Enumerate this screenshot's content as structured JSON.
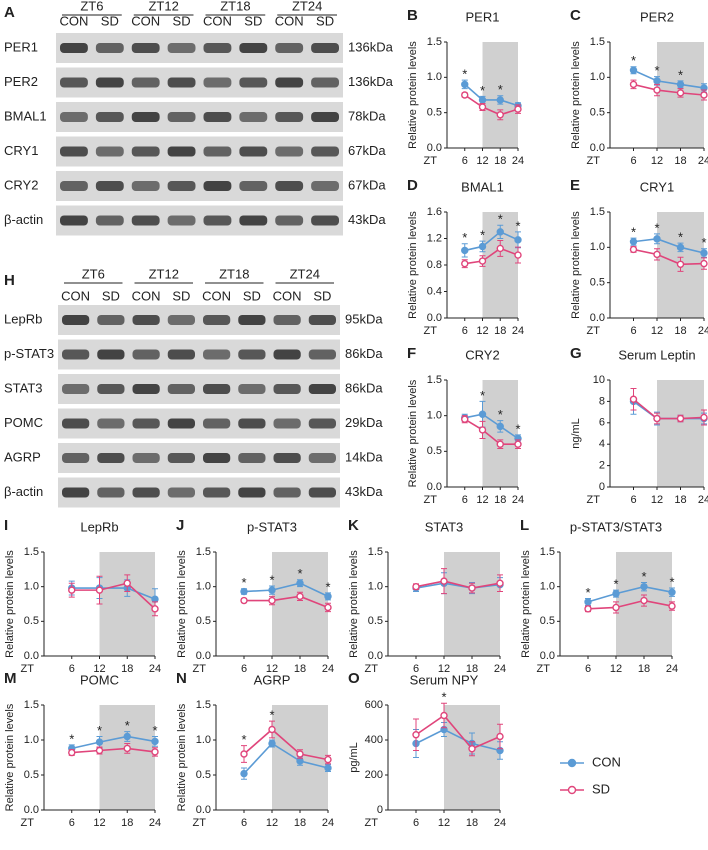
{
  "blots": [
    {
      "letter": "A",
      "groups": [
        "ZT6",
        "ZT12",
        "ZT18",
        "ZT24"
      ],
      "conditions": [
        "CON",
        "SD",
        "CON",
        "SD",
        "CON",
        "SD",
        "CON",
        "SD"
      ],
      "rows": [
        {
          "protein": "PER1",
          "size": "136kDa"
        },
        {
          "protein": "PER2",
          "size": "136kDa"
        },
        {
          "protein": "BMAL1",
          "size": "78kDa"
        },
        {
          "protein": "CRY1",
          "size": "67kDa"
        },
        {
          "protein": "CRY2",
          "size": "67kDa"
        },
        {
          "protein": "β-actin",
          "size": "43kDa"
        }
      ]
    },
    {
      "letter": "H",
      "groups": [
        "ZT6",
        "ZT12",
        "ZT18",
        "ZT24"
      ],
      "conditions": [
        "CON",
        "SD",
        "CON",
        "SD",
        "CON",
        "SD",
        "CON",
        "SD"
      ],
      "rows": [
        {
          "protein": "LepRb",
          "size": "95kDa"
        },
        {
          "protein": "p-STAT3",
          "size": "86kDa"
        },
        {
          "protein": "STAT3",
          "size": "86kDa"
        },
        {
          "protein": "POMC",
          "size": "29kDa"
        },
        {
          "protein": "AGRP",
          "size": "14kDa"
        },
        {
          "protein": "β-actin",
          "size": "43kDa"
        }
      ]
    }
  ],
  "chart_data": [
    {
      "type": "line",
      "letter": "B",
      "title": "PER1",
      "ylabel": "Relative protein levels",
      "xlabel": "ZT",
      "x": [
        6,
        12,
        18,
        24
      ],
      "xlim": [
        0,
        24
      ],
      "xticks": [
        6,
        12,
        18,
        24
      ],
      "ylim": [
        0,
        1.5
      ],
      "yticks": [
        {
          "value": 0,
          "label": "0.0"
        },
        0.5,
        {
          "value": 1,
          "label": "1.0"
        },
        1.5
      ],
      "shade": [
        12,
        24
      ],
      "series": [
        {
          "name": "CON",
          "color": "#5b9bd5",
          "values": [
            0.9,
            0.68,
            0.68,
            0.6
          ],
          "errors": [
            0.06,
            0.05,
            0.06,
            0.04
          ]
        },
        {
          "name": "SD",
          "color": "#e0457b",
          "values": [
            0.75,
            0.58,
            0.47,
            0.55
          ],
          "errors": [
            0.03,
            0.05,
            0.07,
            0.06
          ]
        }
      ],
      "annotations": [
        {
          "x": 6,
          "text": "*"
        },
        {
          "x": 12,
          "text": "*"
        },
        {
          "x": 18,
          "text": "*"
        }
      ]
    },
    {
      "type": "line",
      "letter": "C",
      "title": "PER2",
      "ylabel": "Relative protein levels",
      "xlabel": "ZT",
      "x": [
        6,
        12,
        18,
        24
      ],
      "xlim": [
        0,
        24
      ],
      "xticks": [
        6,
        12,
        18,
        24
      ],
      "ylim": [
        0,
        1.5
      ],
      "yticks": [
        {
          "value": 0,
          "label": "0.0"
        },
        0.5,
        {
          "value": 1,
          "label": "1.0"
        },
        1.5
      ],
      "shade": [
        12,
        24
      ],
      "series": [
        {
          "name": "CON",
          "color": "#5b9bd5",
          "values": [
            1.1,
            0.95,
            0.9,
            0.85
          ],
          "errors": [
            0.05,
            0.06,
            0.05,
            0.06
          ]
        },
        {
          "name": "SD",
          "color": "#e0457b",
          "values": [
            0.9,
            0.82,
            0.78,
            0.75
          ],
          "errors": [
            0.06,
            0.08,
            0.06,
            0.07
          ]
        }
      ],
      "annotations": [
        {
          "x": 6,
          "text": "*"
        },
        {
          "x": 12,
          "text": "*"
        },
        {
          "x": 18,
          "text": "*"
        }
      ]
    },
    {
      "type": "line",
      "letter": "D",
      "title": "BMAL1",
      "ylabel": "Relative protein levels",
      "xlabel": "ZT",
      "x": [
        6,
        12,
        18,
        24
      ],
      "xlim": [
        0,
        24
      ],
      "xticks": [
        6,
        12,
        18,
        24
      ],
      "ylim": [
        0,
        1.6
      ],
      "yticks": [
        {
          "value": 0,
          "label": "0.0"
        },
        0.4,
        0.8,
        1.2,
        1.6
      ],
      "shade": [
        12,
        24
      ],
      "series": [
        {
          "name": "CON",
          "color": "#5b9bd5",
          "values": [
            1.02,
            1.08,
            1.3,
            1.18
          ],
          "errors": [
            0.1,
            0.08,
            0.1,
            0.12
          ]
        },
        {
          "name": "SD",
          "color": "#e0457b",
          "values": [
            0.82,
            0.86,
            1.05,
            0.95
          ],
          "errors": [
            0.06,
            0.08,
            0.12,
            0.12
          ]
        }
      ],
      "annotations": [
        {
          "x": 6,
          "text": "*"
        },
        {
          "x": 12,
          "text": "*"
        },
        {
          "x": 18,
          "text": "*"
        },
        {
          "x": 24,
          "text": "*"
        }
      ]
    },
    {
      "type": "line",
      "letter": "E",
      "title": "CRY1",
      "ylabel": "Relative protein levels",
      "xlabel": "ZT",
      "x": [
        6,
        12,
        18,
        24
      ],
      "xlim": [
        0,
        24
      ],
      "xticks": [
        6,
        12,
        18,
        24
      ],
      "ylim": [
        0,
        1.5
      ],
      "yticks": [
        {
          "value": 0,
          "label": "0.0"
        },
        0.5,
        {
          "value": 1,
          "label": "1.0"
        },
        1.5
      ],
      "shade": [
        12,
        24
      ],
      "series": [
        {
          "name": "CON",
          "color": "#5b9bd5",
          "values": [
            1.08,
            1.12,
            1.0,
            0.92
          ],
          "errors": [
            0.05,
            0.07,
            0.06,
            0.06
          ]
        },
        {
          "name": "SD",
          "color": "#e0457b",
          "values": [
            0.97,
            0.9,
            0.76,
            0.77
          ],
          "errors": [
            0.04,
            0.08,
            0.1,
            0.08
          ]
        }
      ],
      "annotations": [
        {
          "x": 6,
          "text": "*"
        },
        {
          "x": 12,
          "text": "*"
        },
        {
          "x": 18,
          "text": "*"
        },
        {
          "x": 24,
          "text": "*"
        }
      ]
    },
    {
      "type": "line",
      "letter": "F",
      "title": "CRY2",
      "ylabel": "Relative protein levels",
      "xlabel": "ZT",
      "x": [
        6,
        12,
        18,
        24
      ],
      "xlim": [
        0,
        24
      ],
      "xticks": [
        6,
        12,
        18,
        24
      ],
      "ylim": [
        0,
        1.5
      ],
      "yticks": [
        {
          "value": 0,
          "label": "0.0"
        },
        0.5,
        {
          "value": 1,
          "label": "1.0"
        },
        1.5
      ],
      "shade": [
        12,
        24
      ],
      "series": [
        {
          "name": "CON",
          "color": "#5b9bd5",
          "values": [
            0.97,
            1.02,
            0.85,
            0.68
          ],
          "errors": [
            0.05,
            0.18,
            0.08,
            0.05
          ]
        },
        {
          "name": "SD",
          "color": "#e0457b",
          "values": [
            0.95,
            0.8,
            0.6,
            0.6
          ],
          "errors": [
            0.05,
            0.12,
            0.06,
            0.06
          ]
        }
      ],
      "annotations": [
        {
          "x": 12,
          "text": "*"
        },
        {
          "x": 18,
          "text": "*"
        },
        {
          "x": 24,
          "text": "*"
        }
      ]
    },
    {
      "type": "line",
      "letter": "G",
      "title": "Serum Leptin",
      "ylabel": "ng/mL",
      "xlabel": "ZT",
      "x": [
        6,
        12,
        18,
        24
      ],
      "xlim": [
        0,
        24
      ],
      "xticks": [
        6,
        12,
        18,
        24
      ],
      "ylim": [
        0,
        10
      ],
      "yticks": [
        0,
        2,
        4,
        6,
        8,
        10
      ],
      "shade": [
        12,
        24
      ],
      "series": [
        {
          "name": "CON",
          "color": "#5b9bd5",
          "values": [
            8,
            6.4,
            6.4,
            6.4
          ],
          "errors": [
            1.2,
            0.6,
            0.3,
            0.5
          ]
        },
        {
          "name": "SD",
          "color": "#e0457b",
          "values": [
            8.2,
            6.4,
            6.4,
            6.5
          ],
          "errors": [
            1.0,
            0.5,
            0.3,
            0.7
          ]
        }
      ],
      "annotations": []
    },
    {
      "type": "line",
      "letter": "I",
      "title": "LepRb",
      "ylabel": "Relative protein levels",
      "xlabel": "ZT",
      "x": [
        6,
        12,
        18,
        24
      ],
      "xlim": [
        0,
        24
      ],
      "xticks": [
        6,
        12,
        18,
        24
      ],
      "ylim": [
        0,
        1.5
      ],
      "yticks": [
        {
          "value": 0,
          "label": "0.0"
        },
        0.5,
        {
          "value": 1,
          "label": "1.0"
        },
        1.5
      ],
      "shade": [
        12,
        24
      ],
      "series": [
        {
          "name": "CON",
          "color": "#5b9bd5",
          "values": [
            0.98,
            0.98,
            0.98,
            0.82
          ],
          "errors": [
            0.1,
            0.15,
            0.12,
            0.15
          ]
        },
        {
          "name": "SD",
          "color": "#e0457b",
          "values": [
            0.95,
            0.95,
            1.05,
            0.68
          ],
          "errors": [
            0.1,
            0.2,
            0.12,
            0.1
          ]
        }
      ],
      "annotations": []
    },
    {
      "type": "line",
      "letter": "J",
      "title": "p-STAT3",
      "ylabel": "Relative protein levels",
      "xlabel": "ZT",
      "x": [
        6,
        12,
        18,
        24
      ],
      "xlim": [
        0,
        24
      ],
      "xticks": [
        6,
        12,
        18,
        24
      ],
      "ylim": [
        0,
        1.5
      ],
      "yticks": [
        {
          "value": 0,
          "label": "0.0"
        },
        0.5,
        {
          "value": 1,
          "label": "1.0"
        },
        1.5
      ],
      "shade": [
        12,
        24
      ],
      "series": [
        {
          "name": "CON",
          "color": "#5b9bd5",
          "values": [
            0.93,
            0.95,
            1.05,
            0.86
          ],
          "errors": [
            0.04,
            0.06,
            0.05,
            0.05
          ]
        },
        {
          "name": "SD",
          "color": "#e0457b",
          "values": [
            0.8,
            0.8,
            0.86,
            0.7
          ],
          "errors": [
            0.03,
            0.06,
            0.06,
            0.06
          ]
        }
      ],
      "annotations": [
        {
          "x": 6,
          "text": "*"
        },
        {
          "x": 12,
          "text": "*"
        },
        {
          "x": 18,
          "text": "*"
        },
        {
          "x": 24,
          "text": "*"
        }
      ]
    },
    {
      "type": "line",
      "letter": "K",
      "title": "STAT3",
      "ylabel": "Relative protein levels",
      "xlabel": "ZT",
      "x": [
        6,
        12,
        18,
        24
      ],
      "xlim": [
        0,
        24
      ],
      "xticks": [
        6,
        12,
        18,
        24
      ],
      "ylim": [
        0,
        1.5
      ],
      "yticks": [
        {
          "value": 0,
          "label": "0.0"
        },
        0.5,
        {
          "value": 1,
          "label": "1.0"
        },
        1.5
      ],
      "shade": [
        12,
        24
      ],
      "series": [
        {
          "name": "CON",
          "color": "#5b9bd5",
          "values": [
            0.98,
            1.05,
            0.98,
            1.03
          ],
          "errors": [
            0.05,
            0.15,
            0.08,
            0.1
          ]
        },
        {
          "name": "SD",
          "color": "#e0457b",
          "values": [
            1.0,
            1.08,
            0.98,
            1.05
          ],
          "errors": [
            0.04,
            0.18,
            0.07,
            0.12
          ]
        }
      ],
      "annotations": []
    },
    {
      "type": "line",
      "letter": "L",
      "title": "p-STAT3/STAT3",
      "ylabel": "Relative protein levels",
      "xlabel": "ZT",
      "x": [
        6,
        12,
        18,
        24
      ],
      "xlim": [
        0,
        24
      ],
      "xticks": [
        6,
        12,
        18,
        24
      ],
      "ylim": [
        0,
        1.5
      ],
      "yticks": [
        {
          "value": 0,
          "label": "0.0"
        },
        0.5,
        {
          "value": 1,
          "label": "1.0"
        },
        1.5
      ],
      "shade": [
        12,
        24
      ],
      "series": [
        {
          "name": "CON",
          "color": "#5b9bd5",
          "values": [
            0.78,
            0.9,
            1.0,
            0.92
          ],
          "errors": [
            0.05,
            0.05,
            0.06,
            0.06
          ]
        },
        {
          "name": "SD",
          "color": "#e0457b",
          "values": [
            0.68,
            0.7,
            0.8,
            0.72
          ],
          "errors": [
            0.04,
            0.08,
            0.08,
            0.06
          ]
        }
      ],
      "annotations": [
        {
          "x": 6,
          "text": "*"
        },
        {
          "x": 12,
          "text": "*"
        },
        {
          "x": 18,
          "text": "*"
        },
        {
          "x": 24,
          "text": "*"
        }
      ]
    },
    {
      "type": "line",
      "letter": "M",
      "title": "POMC",
      "ylabel": "Relative protein levels",
      "xlabel": "ZT",
      "x": [
        6,
        12,
        18,
        24
      ],
      "xlim": [
        0,
        24
      ],
      "xticks": [
        6,
        12,
        18,
        24
      ],
      "ylim": [
        0,
        1.5
      ],
      "yticks": [
        {
          "value": 0,
          "label": "0.0"
        },
        0.5,
        {
          "value": 1,
          "label": "1.0"
        },
        1.5
      ],
      "shade": [
        12,
        24
      ],
      "series": [
        {
          "name": "CON",
          "color": "#5b9bd5",
          "values": [
            0.88,
            0.97,
            1.05,
            0.98
          ],
          "errors": [
            0.05,
            0.08,
            0.07,
            0.07
          ]
        },
        {
          "name": "SD",
          "color": "#e0457b",
          "values": [
            0.82,
            0.85,
            0.88,
            0.83
          ],
          "errors": [
            0.04,
            0.05,
            0.07,
            0.06
          ]
        }
      ],
      "annotations": [
        {
          "x": 6,
          "text": "*"
        },
        {
          "x": 12,
          "text": "*"
        },
        {
          "x": 18,
          "text": "*"
        },
        {
          "x": 24,
          "text": "*"
        }
      ]
    },
    {
      "type": "line",
      "letter": "N",
      "title": "AGRP",
      "ylabel": "Relative protein levels",
      "xlabel": "ZT",
      "x": [
        6,
        12,
        18,
        24
      ],
      "xlim": [
        0,
        24
      ],
      "xticks": [
        6,
        12,
        18,
        24
      ],
      "ylim": [
        0,
        1.5
      ],
      "yticks": [
        {
          "value": 0,
          "label": "0.0"
        },
        0.5,
        {
          "value": 1,
          "label": "1.0"
        },
        1.5
      ],
      "shade": [
        12,
        24
      ],
      "series": [
        {
          "name": "CON",
          "color": "#5b9bd5",
          "values": [
            0.52,
            0.95,
            0.7,
            0.6
          ],
          "errors": [
            0.08,
            0.05,
            0.06,
            0.05
          ]
        },
        {
          "name": "SD",
          "color": "#e0457b",
          "values": [
            0.8,
            1.15,
            0.8,
            0.72
          ],
          "errors": [
            0.12,
            0.12,
            0.06,
            0.06
          ]
        }
      ],
      "annotations": [
        {
          "x": 6,
          "text": "*"
        },
        {
          "x": 12,
          "text": "*"
        }
      ]
    },
    {
      "type": "line",
      "letter": "O",
      "title": "Serum NPY",
      "ylabel": "pg/mL",
      "xlabel": "ZT",
      "x": [
        6,
        12,
        18,
        24
      ],
      "xlim": [
        0,
        24
      ],
      "xticks": [
        6,
        12,
        18,
        24
      ],
      "ylim": [
        0,
        600
      ],
      "yticks": [
        0,
        200,
        400,
        600
      ],
      "shade": [
        12,
        24
      ],
      "series": [
        {
          "name": "CON",
          "color": "#5b9bd5",
          "values": [
            380,
            460,
            380,
            340
          ],
          "errors": [
            80,
            40,
            60,
            50
          ]
        },
        {
          "name": "SD",
          "color": "#e0457b",
          "values": [
            430,
            540,
            350,
            420
          ],
          "errors": [
            90,
            70,
            40,
            70
          ]
        }
      ],
      "annotations": [
        {
          "x": 12,
          "text": "*"
        }
      ]
    }
  ]
}
